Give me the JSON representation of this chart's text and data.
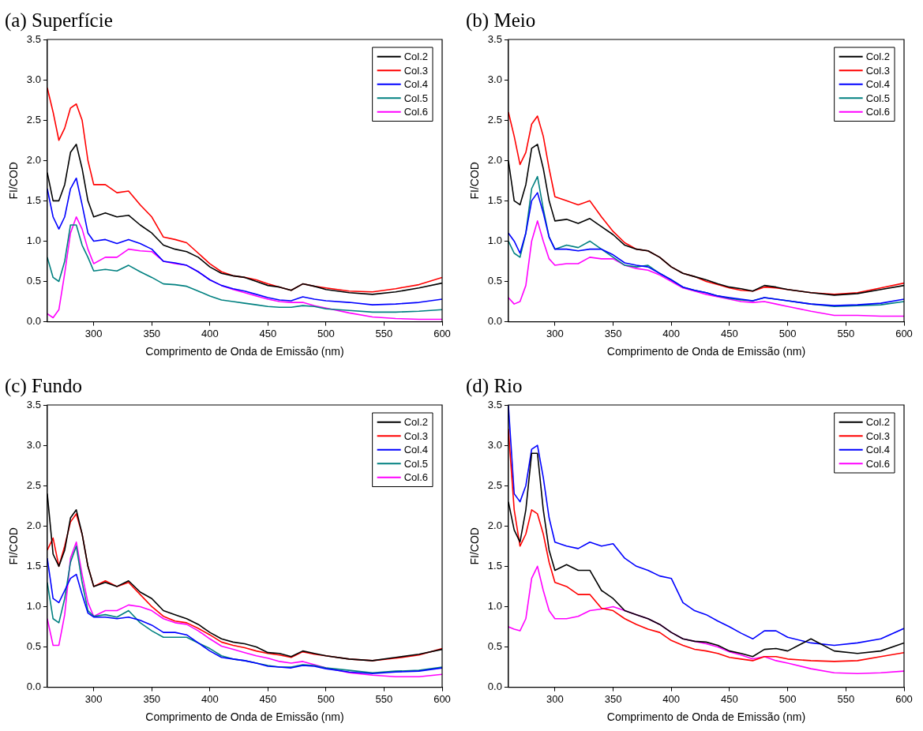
{
  "chart_data": [
    {
      "type": "line",
      "title": "(a) Superfície",
      "xlabel": "Comprimento de Onda de Emissão (nm)",
      "ylabel": "FI/COD",
      "legend": "top right",
      "marker": "none",
      "xlim": [
        260,
        600
      ],
      "xticks": [
        300,
        350,
        400,
        450,
        500,
        550,
        600
      ],
      "ylim": [
        0,
        3.5
      ],
      "yticks": [
        {
          "value": 0,
          "label": "0.0"
        },
        0.5,
        {
          "value": 1,
          "label": "1.0"
        },
        1.5,
        {
          "value": 2,
          "label": "2.0"
        },
        2.5,
        {
          "value": 3,
          "label": "3.0"
        },
        3.5
      ],
      "x": [
        260,
        265,
        270,
        275,
        280,
        285,
        290,
        295,
        300,
        310,
        320,
        330,
        340,
        350,
        360,
        370,
        380,
        390,
        400,
        410,
        420,
        430,
        440,
        450,
        460,
        470,
        480,
        490,
        500,
        520,
        540,
        560,
        580,
        600
      ],
      "series": [
        {
          "name": "Col.2",
          "color": "#000000",
          "values": [
            1.85,
            1.5,
            1.5,
            1.7,
            2.1,
            2.2,
            1.9,
            1.5,
            1.3,
            1.35,
            1.3,
            1.32,
            1.2,
            1.1,
            0.95,
            0.9,
            0.87,
            0.8,
            0.68,
            0.6,
            0.57,
            0.55,
            0.5,
            0.45,
            0.43,
            0.39,
            0.47,
            0.44,
            0.4,
            0.36,
            0.34,
            0.37,
            0.42,
            0.48
          ]
        },
        {
          "name": "Col.3",
          "color": "#ff0000",
          "values": [
            2.9,
            2.6,
            2.25,
            2.4,
            2.65,
            2.7,
            2.5,
            2.0,
            1.7,
            1.7,
            1.6,
            1.62,
            1.45,
            1.3,
            1.05,
            1.02,
            0.98,
            0.85,
            0.72,
            0.62,
            0.57,
            0.55,
            0.52,
            0.47,
            0.43,
            0.39,
            0.47,
            0.44,
            0.42,
            0.38,
            0.37,
            0.41,
            0.46,
            0.55
          ]
        },
        {
          "name": "Col.4",
          "color": "#0000ff",
          "values": [
            1.65,
            1.3,
            1.15,
            1.3,
            1.65,
            1.78,
            1.45,
            1.1,
            1.0,
            1.02,
            0.97,
            1.02,
            0.97,
            0.9,
            0.75,
            0.73,
            0.7,
            0.62,
            0.52,
            0.45,
            0.41,
            0.38,
            0.34,
            0.3,
            0.27,
            0.26,
            0.31,
            0.28,
            0.26,
            0.24,
            0.21,
            0.22,
            0.24,
            0.28
          ]
        },
        {
          "name": "Col.5",
          "color": "#008080",
          "values": [
            0.8,
            0.55,
            0.5,
            0.75,
            1.2,
            1.2,
            0.95,
            0.8,
            0.63,
            0.65,
            0.63,
            0.7,
            0.62,
            0.55,
            0.47,
            0.46,
            0.44,
            0.38,
            0.32,
            0.27,
            0.25,
            0.23,
            0.21,
            0.19,
            0.18,
            0.18,
            0.2,
            0.19,
            0.16,
            0.14,
            0.12,
            0.12,
            0.13,
            0.15
          ]
        },
        {
          "name": "Col.6",
          "color": "#ff00ff",
          "values": [
            0.1,
            0.05,
            0.15,
            0.6,
            1.1,
            1.3,
            1.15,
            0.9,
            0.72,
            0.8,
            0.8,
            0.9,
            0.88,
            0.87,
            0.75,
            0.72,
            0.7,
            0.62,
            0.52,
            0.45,
            0.4,
            0.36,
            0.32,
            0.28,
            0.25,
            0.24,
            0.24,
            0.2,
            0.17,
            0.11,
            0.06,
            0.04,
            0.03,
            0.03
          ]
        }
      ]
    },
    {
      "type": "line",
      "title": "(b) Meio",
      "xlabel": "Comprimento de Onda de Emissão (nm)",
      "ylabel": "FI/COD",
      "legend": "top right",
      "marker": "none",
      "xlim": [
        260,
        600
      ],
      "xticks": [
        300,
        350,
        400,
        450,
        500,
        550,
        600
      ],
      "ylim": [
        0,
        3.5
      ],
      "yticks": [
        {
          "value": 0,
          "label": "0.0"
        },
        0.5,
        {
          "value": 1,
          "label": "1.0"
        },
        1.5,
        {
          "value": 2,
          "label": "2.0"
        },
        2.5,
        {
          "value": 3,
          "label": "3.0"
        },
        3.5
      ],
      "x": [
        260,
        265,
        270,
        275,
        280,
        285,
        290,
        295,
        300,
        310,
        320,
        330,
        340,
        350,
        360,
        370,
        380,
        390,
        400,
        410,
        420,
        430,
        440,
        450,
        460,
        470,
        480,
        490,
        500,
        520,
        540,
        560,
        580,
        600
      ],
      "series": [
        {
          "name": "Col.2",
          "color": "#000000",
          "values": [
            2.0,
            1.5,
            1.45,
            1.7,
            2.15,
            2.2,
            1.9,
            1.5,
            1.25,
            1.27,
            1.22,
            1.28,
            1.18,
            1.08,
            0.95,
            0.9,
            0.88,
            0.8,
            0.68,
            0.6,
            0.56,
            0.52,
            0.47,
            0.43,
            0.41,
            0.38,
            0.45,
            0.43,
            0.4,
            0.36,
            0.33,
            0.35,
            0.4,
            0.45
          ]
        },
        {
          "name": "Col.3",
          "color": "#ff0000",
          "values": [
            2.6,
            2.3,
            1.95,
            2.1,
            2.45,
            2.55,
            2.3,
            1.9,
            1.55,
            1.5,
            1.45,
            1.5,
            1.3,
            1.12,
            0.98,
            0.9,
            0.88,
            0.8,
            0.68,
            0.6,
            0.56,
            0.5,
            0.46,
            0.42,
            0.39,
            0.38,
            0.43,
            0.42,
            0.4,
            0.36,
            0.34,
            0.36,
            0.42,
            0.48
          ]
        },
        {
          "name": "Col.4",
          "color": "#0000ff",
          "values": [
            1.1,
            1.0,
            0.85,
            1.1,
            1.5,
            1.6,
            1.35,
            1.05,
            0.9,
            0.9,
            0.88,
            0.9,
            0.9,
            0.83,
            0.73,
            0.7,
            0.68,
            0.6,
            0.52,
            0.43,
            0.39,
            0.36,
            0.32,
            0.3,
            0.28,
            0.26,
            0.3,
            0.28,
            0.26,
            0.22,
            0.2,
            0.21,
            0.23,
            0.28
          ]
        },
        {
          "name": "Col.5",
          "color": "#008080",
          "values": [
            1.0,
            0.85,
            0.8,
            1.1,
            1.65,
            1.8,
            1.4,
            1.05,
            0.9,
            0.95,
            0.92,
            1.0,
            0.9,
            0.8,
            0.7,
            0.68,
            0.7,
            0.6,
            0.52,
            0.43,
            0.39,
            0.36,
            0.32,
            0.29,
            0.27,
            0.26,
            0.3,
            0.28,
            0.26,
            0.22,
            0.19,
            0.2,
            0.21,
            0.25
          ]
        },
        {
          "name": "Col.6",
          "color": "#ff00ff",
          "values": [
            0.3,
            0.22,
            0.25,
            0.45,
            1.0,
            1.25,
            1.0,
            0.78,
            0.7,
            0.72,
            0.72,
            0.8,
            0.78,
            0.78,
            0.7,
            0.66,
            0.64,
            0.58,
            0.5,
            0.42,
            0.38,
            0.34,
            0.31,
            0.28,
            0.25,
            0.24,
            0.25,
            0.22,
            0.19,
            0.13,
            0.08,
            0.08,
            0.07,
            0.07
          ]
        }
      ]
    },
    {
      "type": "line",
      "title": "(c) Fundo",
      "xlabel": "Comprimento de Onda de Emissão (nm)",
      "ylabel": "FI/COD",
      "legend": "top right",
      "marker": "none",
      "xlim": [
        260,
        600
      ],
      "xticks": [
        300,
        350,
        400,
        450,
        500,
        550,
        600
      ],
      "ylim": [
        0,
        3.5
      ],
      "yticks": [
        {
          "value": 0,
          "label": "0.0"
        },
        0.5,
        {
          "value": 1,
          "label": "1.0"
        },
        1.5,
        {
          "value": 2,
          "label": "2.0"
        },
        2.5,
        {
          "value": 3,
          "label": "3.0"
        },
        3.5
      ],
      "x": [
        260,
        265,
        270,
        275,
        280,
        285,
        290,
        295,
        300,
        310,
        320,
        330,
        340,
        350,
        360,
        370,
        380,
        390,
        400,
        410,
        420,
        430,
        440,
        450,
        460,
        470,
        480,
        490,
        500,
        520,
        540,
        560,
        580,
        600
      ],
      "series": [
        {
          "name": "Col.2",
          "color": "#000000",
          "values": [
            2.4,
            1.65,
            1.5,
            1.7,
            2.1,
            2.2,
            1.9,
            1.5,
            1.25,
            1.3,
            1.25,
            1.32,
            1.18,
            1.1,
            0.95,
            0.9,
            0.85,
            0.78,
            0.68,
            0.6,
            0.56,
            0.54,
            0.5,
            0.43,
            0.42,
            0.38,
            0.45,
            0.42,
            0.39,
            0.35,
            0.33,
            0.37,
            0.41,
            0.47
          ]
        },
        {
          "name": "Col.3",
          "color": "#ff0000",
          "values": [
            1.7,
            1.85,
            1.5,
            1.75,
            2.05,
            2.15,
            1.9,
            1.5,
            1.25,
            1.32,
            1.25,
            1.3,
            1.15,
            1.0,
            0.88,
            0.82,
            0.8,
            0.73,
            0.65,
            0.56,
            0.52,
            0.49,
            0.45,
            0.42,
            0.4,
            0.37,
            0.44,
            0.41,
            0.39,
            0.35,
            0.33,
            0.36,
            0.4,
            0.48
          ]
        },
        {
          "name": "Col.4",
          "color": "#0000ff",
          "values": [
            1.6,
            1.1,
            1.05,
            1.2,
            1.35,
            1.4,
            1.15,
            0.92,
            0.87,
            0.87,
            0.85,
            0.87,
            0.83,
            0.77,
            0.68,
            0.68,
            0.65,
            0.55,
            0.45,
            0.37,
            0.35,
            0.33,
            0.3,
            0.26,
            0.25,
            0.24,
            0.27,
            0.26,
            0.23,
            0.19,
            0.17,
            0.19,
            0.2,
            0.24
          ]
        },
        {
          "name": "Col.5",
          "color": "#008080",
          "values": [
            1.3,
            0.85,
            0.8,
            1.1,
            1.55,
            1.75,
            1.3,
            0.95,
            0.88,
            0.9,
            0.87,
            0.95,
            0.8,
            0.7,
            0.62,
            0.62,
            0.62,
            0.55,
            0.48,
            0.39,
            0.35,
            0.33,
            0.3,
            0.27,
            0.25,
            0.25,
            0.28,
            0.27,
            0.24,
            0.21,
            0.18,
            0.2,
            0.21,
            0.25
          ]
        },
        {
          "name": "Col.6",
          "color": "#ff00ff",
          "values": [
            0.85,
            0.52,
            0.52,
            0.9,
            1.6,
            1.8,
            1.4,
            1.05,
            0.88,
            0.95,
            0.95,
            1.02,
            1.0,
            0.95,
            0.85,
            0.8,
            0.78,
            0.7,
            0.6,
            0.51,
            0.47,
            0.43,
            0.39,
            0.36,
            0.32,
            0.3,
            0.32,
            0.28,
            0.24,
            0.18,
            0.15,
            0.13,
            0.13,
            0.16
          ]
        }
      ]
    },
    {
      "type": "line",
      "title": "(d) Rio",
      "xlabel": "Comprimento de Onda de Emissão (nm)",
      "ylabel": "FI/COD",
      "legend": "top right",
      "marker": "none",
      "xlim": [
        260,
        600
      ],
      "xticks": [
        300,
        350,
        400,
        450,
        500,
        550,
        600
      ],
      "ylim": [
        0,
        3.5
      ],
      "yticks": [
        {
          "value": 0,
          "label": "0.0"
        },
        0.5,
        {
          "value": 1,
          "label": "1.0"
        },
        1.5,
        {
          "value": 2,
          "label": "2.0"
        },
        2.5,
        {
          "value": 3,
          "label": "3.0"
        },
        3.5
      ],
      "x": [
        260,
        265,
        270,
        275,
        280,
        285,
        290,
        295,
        300,
        310,
        320,
        330,
        340,
        350,
        360,
        370,
        380,
        390,
        400,
        410,
        420,
        430,
        440,
        450,
        460,
        470,
        480,
        490,
        500,
        520,
        540,
        560,
        580,
        600
      ],
      "series": [
        {
          "name": "Col.2",
          "color": "#000000",
          "values": [
            2.3,
            1.95,
            1.8,
            2.2,
            2.9,
            2.9,
            2.2,
            1.7,
            1.45,
            1.52,
            1.45,
            1.45,
            1.2,
            1.1,
            0.95,
            0.9,
            0.85,
            0.78,
            0.68,
            0.6,
            0.57,
            0.56,
            0.52,
            0.45,
            0.42,
            0.38,
            0.47,
            0.48,
            0.45,
            0.6,
            0.45,
            0.42,
            0.45,
            0.55
          ]
        },
        {
          "name": "Col.3",
          "color": "#ff0000",
          "values": [
            3.2,
            2.2,
            1.75,
            1.9,
            2.2,
            2.15,
            1.9,
            1.55,
            1.3,
            1.25,
            1.15,
            1.15,
            0.98,
            0.95,
            0.85,
            0.78,
            0.72,
            0.68,
            0.58,
            0.52,
            0.47,
            0.45,
            0.42,
            0.37,
            0.35,
            0.33,
            0.38,
            0.38,
            0.35,
            0.33,
            0.32,
            0.33,
            0.38,
            0.43
          ]
        },
        {
          "name": "Col.4",
          "color": "#0000ff",
          "values": [
            3.5,
            2.4,
            2.3,
            2.5,
            2.95,
            3.0,
            2.6,
            2.1,
            1.8,
            1.75,
            1.72,
            1.8,
            1.75,
            1.78,
            1.6,
            1.5,
            1.45,
            1.38,
            1.35,
            1.05,
            0.95,
            0.9,
            0.82,
            0.75,
            0.67,
            0.6,
            0.7,
            0.7,
            0.62,
            0.55,
            0.52,
            0.55,
            0.6,
            0.73
          ]
        },
        {
          "name": "Col.6",
          "color": "#ff00ff",
          "values": [
            0.75,
            0.72,
            0.7,
            0.85,
            1.35,
            1.5,
            1.2,
            0.95,
            0.85,
            0.85,
            0.88,
            0.95,
            0.97,
            1.0,
            0.95,
            0.9,
            0.85,
            0.78,
            0.68,
            0.6,
            0.57,
            0.54,
            0.5,
            0.44,
            0.4,
            0.35,
            0.38,
            0.33,
            0.3,
            0.23,
            0.18,
            0.17,
            0.18,
            0.2
          ]
        }
      ]
    }
  ]
}
